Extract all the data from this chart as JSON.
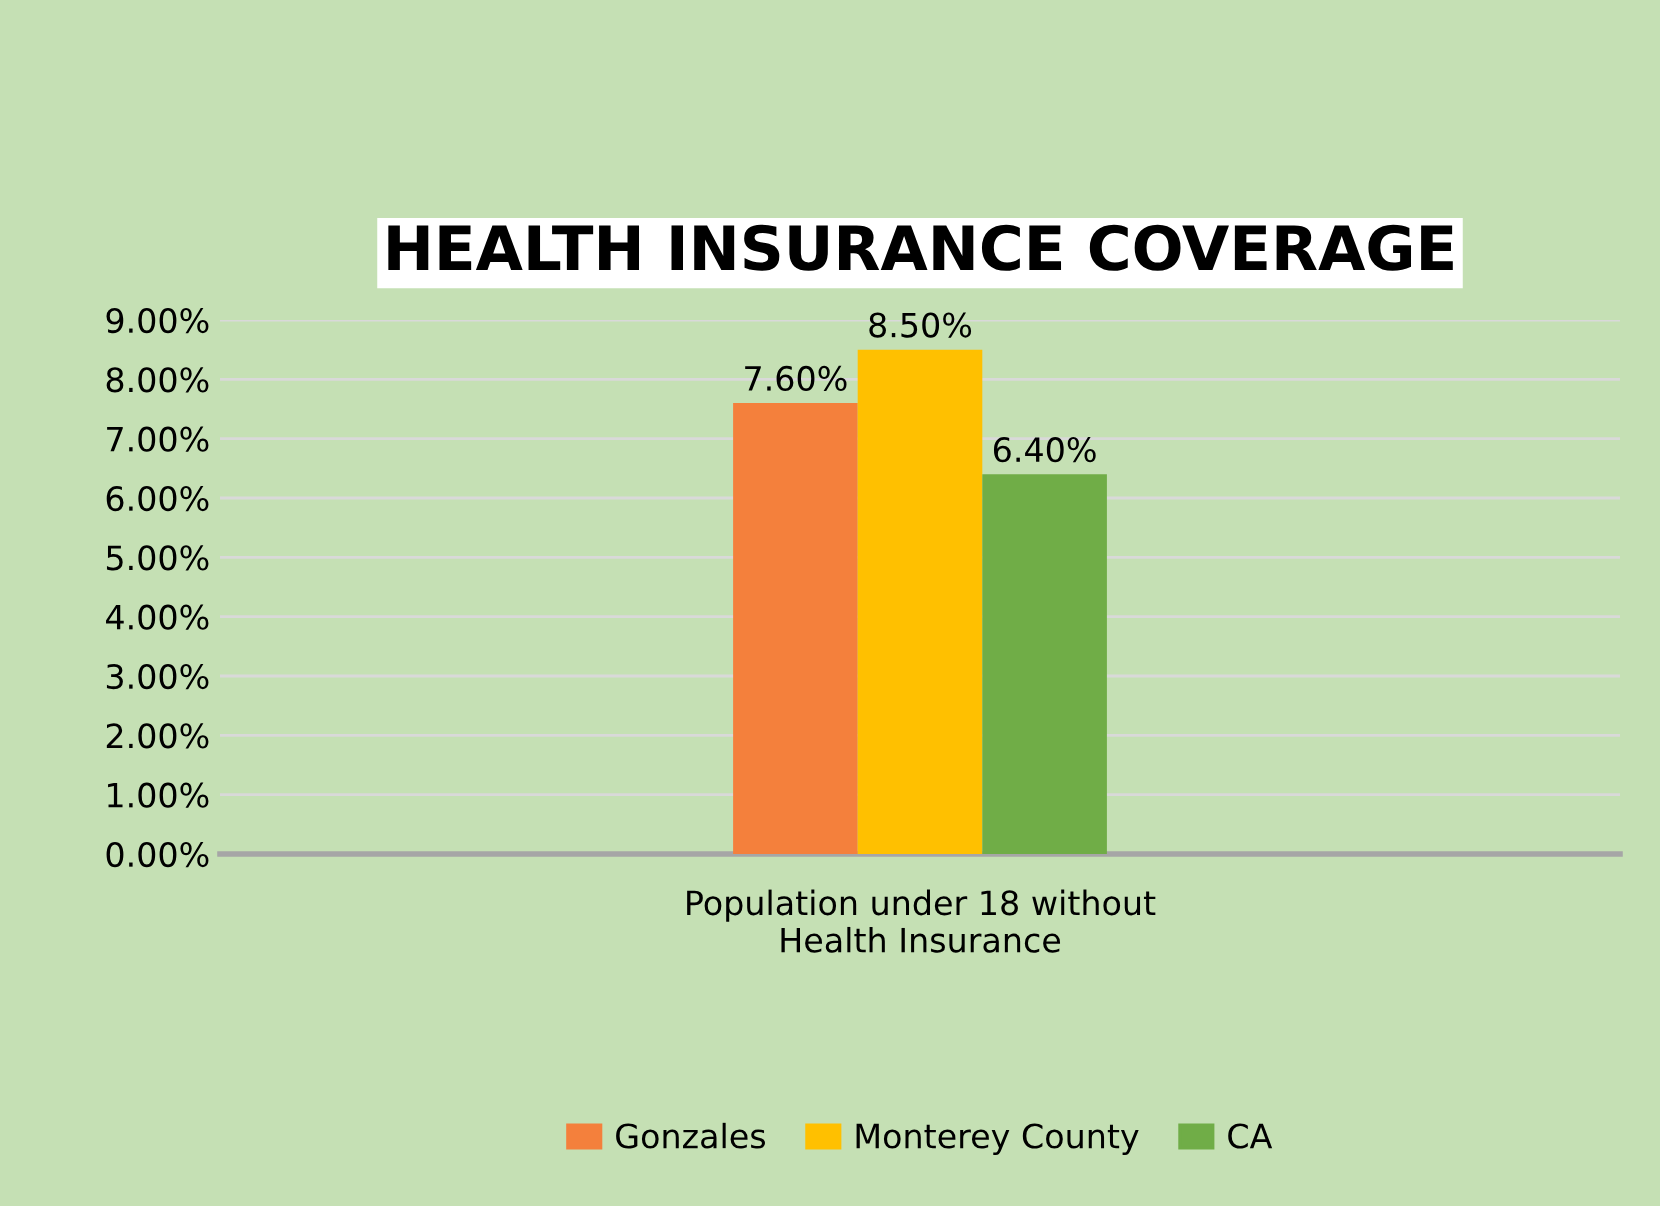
{
  "chart_data": {
    "type": "bar",
    "title": "HEALTH INSURANCE COVERAGE",
    "categories": [
      "Population under 18 without Health Insurance"
    ],
    "series": [
      {
        "name": "Gonzales",
        "color": "#f4803c",
        "values": [
          7.6
        ],
        "value_labels": [
          "7.60%"
        ]
      },
      {
        "name": "Monterey County",
        "color": "#ffc000",
        "values": [
          8.5
        ],
        "value_labels": [
          "8.50%"
        ]
      },
      {
        "name": "CA",
        "color": "#70ad47",
        "values": [
          6.4
        ],
        "value_labels": [
          "6.40%"
        ]
      }
    ],
    "ylim": [
      0,
      9
    ],
    "yticks": [
      {
        "value": 0,
        "label": "0.00%"
      },
      {
        "value": 1,
        "label": "1.00%"
      },
      {
        "value": 2,
        "label": "2.00%"
      },
      {
        "value": 3,
        "label": "3.00%"
      },
      {
        "value": 4,
        "label": "4.00%"
      },
      {
        "value": 5,
        "label": "5.00%"
      },
      {
        "value": 6,
        "label": "6.00%"
      },
      {
        "value": 7,
        "label": "7.00%"
      },
      {
        "value": 8,
        "label": "8.00%"
      },
      {
        "value": 9,
        "label": "9.00%"
      }
    ],
    "grid": "y",
    "legend": "bottom"
  }
}
